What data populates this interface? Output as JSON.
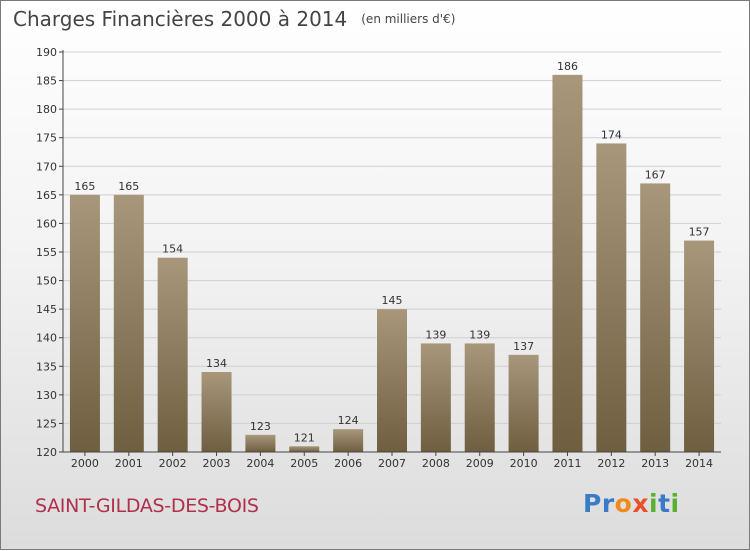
{
  "title": "Charges Financières 2000 à 2014",
  "subtitle": "(en milliers d'€)",
  "footer_place": "SAINT-GILDAS-DES-BOIS",
  "logo": [
    {
      "ch": "P",
      "color": "#3a7bc8"
    },
    {
      "ch": "r",
      "color": "#3a7bc8"
    },
    {
      "ch": "o",
      "color": "#f08a1c"
    },
    {
      "ch": "x",
      "color": "#e8502a"
    },
    {
      "ch": "i",
      "color": "#58b030"
    },
    {
      "ch": "t",
      "color": "#3a7bc8"
    },
    {
      "ch": "i",
      "color": "#58b030"
    }
  ],
  "colors": {
    "bar_top": "#a8977b",
    "bar_bottom": "#6f5e40",
    "grid": "#cfcfcf",
    "axis": "#444444",
    "text": "#333333"
  },
  "chart_data": {
    "type": "bar",
    "title": "Charges Financières 2000 à 2014",
    "subtitle": "(en milliers d'€)",
    "categories": [
      "2000",
      "2001",
      "2002",
      "2003",
      "2004",
      "2005",
      "2006",
      "2007",
      "2008",
      "2009",
      "2010",
      "2011",
      "2012",
      "2013",
      "2014"
    ],
    "values": [
      165,
      165,
      154,
      134,
      123,
      121,
      124,
      145,
      139,
      139,
      137,
      186,
      174,
      167,
      157
    ],
    "ylim": [
      120,
      190
    ],
    "yticks": [
      120,
      125,
      130,
      135,
      140,
      145,
      150,
      155,
      160,
      165,
      170,
      175,
      180,
      185,
      190
    ],
    "grid": true
  }
}
